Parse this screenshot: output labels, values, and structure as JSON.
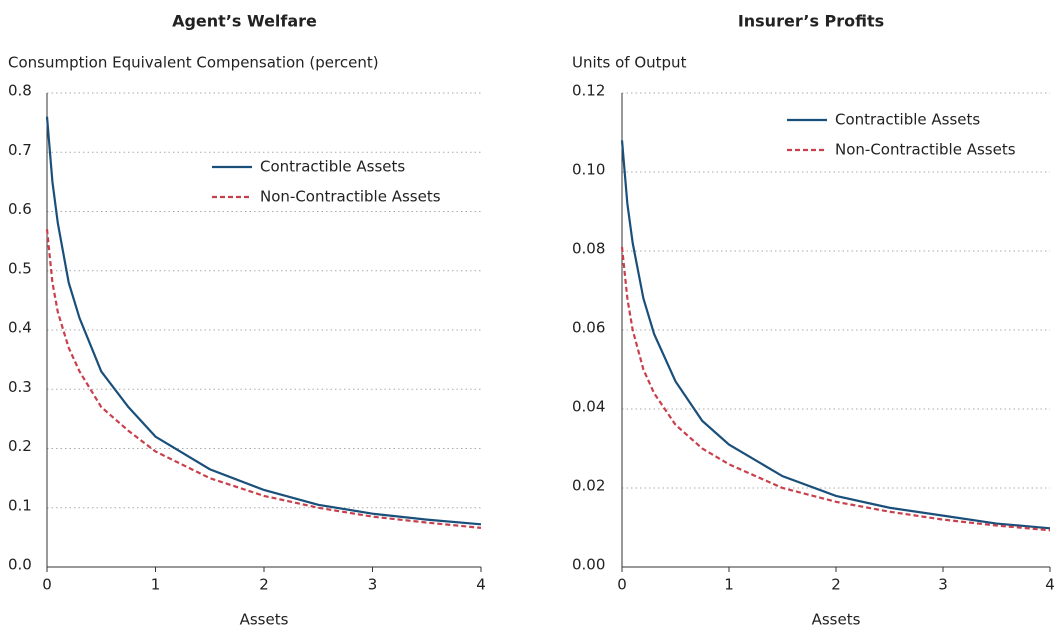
{
  "chart_data": [
    {
      "type": "line",
      "title": "Agent’s Welfare",
      "y_label": "Consumption Equivalent Compensation (percent)",
      "x_label": "Assets",
      "x": [
        0,
        0.05,
        0.1,
        0.2,
        0.3,
        0.5,
        0.75,
        1,
        1.5,
        2,
        2.5,
        3,
        3.5,
        4
      ],
      "series": [
        {
          "name": "Contractible Assets",
          "color": "#1a4f7a",
          "dash": false,
          "values": [
            0.76,
            0.65,
            0.58,
            0.48,
            0.42,
            0.33,
            0.27,
            0.22,
            0.165,
            0.13,
            0.105,
            0.09,
            0.08,
            0.072
          ]
        },
        {
          "name": "Non-Contractible Assets",
          "color": "#c9404d",
          "dash": true,
          "values": [
            0.57,
            0.48,
            0.43,
            0.37,
            0.33,
            0.27,
            0.23,
            0.195,
            0.15,
            0.12,
            0.1,
            0.085,
            0.075,
            0.066
          ]
        }
      ],
      "xlim": [
        0,
        4
      ],
      "xticks": [
        0,
        1,
        2,
        3,
        4
      ],
      "ylim": [
        0,
        0.8
      ],
      "yticks": [
        {
          "value": 0,
          "label": "0.0"
        },
        0.1,
        0.2,
        0.3,
        0.4,
        0.5,
        0.6,
        0.7,
        0.8
      ],
      "grid": true,
      "legend": "upper right"
    },
    {
      "type": "line",
      "title": "Insurer’s Profits",
      "y_label": "Units of Output",
      "x_label": "Assets",
      "x": [
        0,
        0.05,
        0.1,
        0.2,
        0.3,
        0.5,
        0.75,
        1,
        1.5,
        2,
        2.5,
        3,
        3.5,
        4
      ],
      "series": [
        {
          "name": "Contractible Assets",
          "color": "#1a4f7a",
          "dash": false,
          "values": [
            0.108,
            0.092,
            0.082,
            0.068,
            0.059,
            0.047,
            0.037,
            0.031,
            0.023,
            0.018,
            0.015,
            0.013,
            0.011,
            0.0098
          ]
        },
        {
          "name": "Non-Contractible Assets",
          "color": "#c9404d",
          "dash": true,
          "values": [
            0.081,
            0.068,
            0.06,
            0.05,
            0.044,
            0.036,
            0.03,
            0.026,
            0.02,
            0.0165,
            0.014,
            0.012,
            0.0105,
            0.0093
          ]
        }
      ],
      "xlim": [
        0,
        4
      ],
      "xticks": [
        0,
        1,
        2,
        3,
        4
      ],
      "ylim": [
        0,
        0.12
      ],
      "yticks": [
        {
          "value": 0,
          "label": "0.00"
        },
        0.02,
        0.04,
        0.06,
        0.08,
        {
          "value": 0.1,
          "label": "0.10"
        },
        0.12
      ],
      "grid": true,
      "legend": "upper right"
    }
  ]
}
